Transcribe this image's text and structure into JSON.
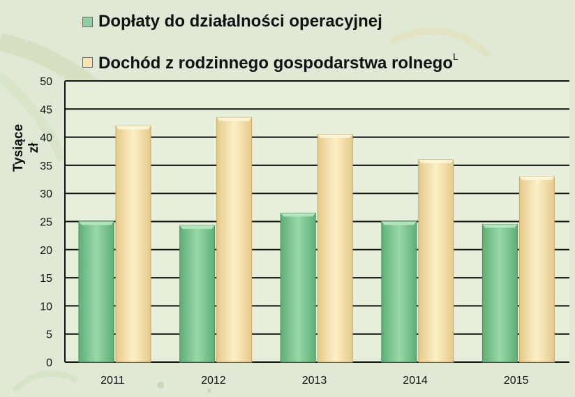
{
  "colors": {
    "background": "#dfe9d6",
    "plot_area": "#e6efdc",
    "series_1": "#8fcf9e",
    "series_2": "#f8e4b0",
    "gridline": "#111111"
  },
  "legend": {
    "item_1": "Dopłaty do działalności operacyjnej",
    "item_2": "Dochód z rodzinnego gospodarstwa rolnego",
    "item_2_superscript": "L"
  },
  "chart_data": {
    "type": "bar",
    "title": "",
    "xlabel": "",
    "ylabel": "Tysiące zł",
    "categories": [
      "2011",
      "2012",
      "2013",
      "2014",
      "2015"
    ],
    "series": [
      {
        "name": "Dopłaty do działalności operacyjnej",
        "values": [
          25.0,
          24.3,
          26.5,
          25.0,
          24.5
        ]
      },
      {
        "name": "Dochód z rodzinnego gospodarstwa rolnego",
        "values": [
          42.0,
          43.5,
          40.5,
          36.0,
          33.0
        ]
      }
    ],
    "ylim": [
      0,
      50
    ],
    "yticks": [
      0,
      5,
      10,
      15,
      20,
      25,
      30,
      35,
      40,
      45,
      50
    ],
    "grid": true,
    "legend_position": "top"
  }
}
